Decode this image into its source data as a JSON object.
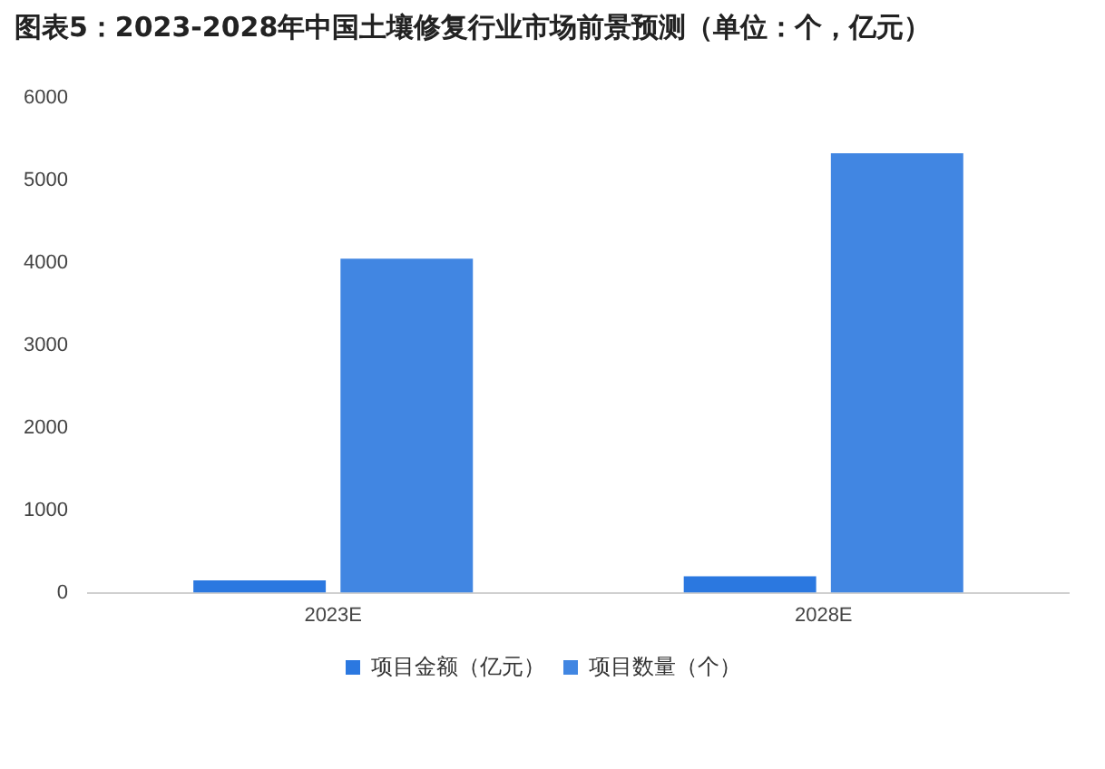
{
  "chart_data": {
    "type": "bar",
    "title": "图表5：2023-2028年中国土壤修复行业市场前景预测（单位：个，亿元）",
    "categories": [
      "2023E",
      "2028E"
    ],
    "series": [
      {
        "name": "项目金额（亿元）",
        "color": "#2b78e0",
        "values": [
          150,
          200
        ]
      },
      {
        "name": "项目数量（个）",
        "color": "#4186e2",
        "values": [
          4050,
          5330
        ]
      }
    ],
    "ylim": [
      0,
      6000
    ],
    "yticks": [
      0,
      1000,
      2000,
      3000,
      4000,
      5000,
      6000
    ],
    "grid": false,
    "legend": "bottom"
  }
}
